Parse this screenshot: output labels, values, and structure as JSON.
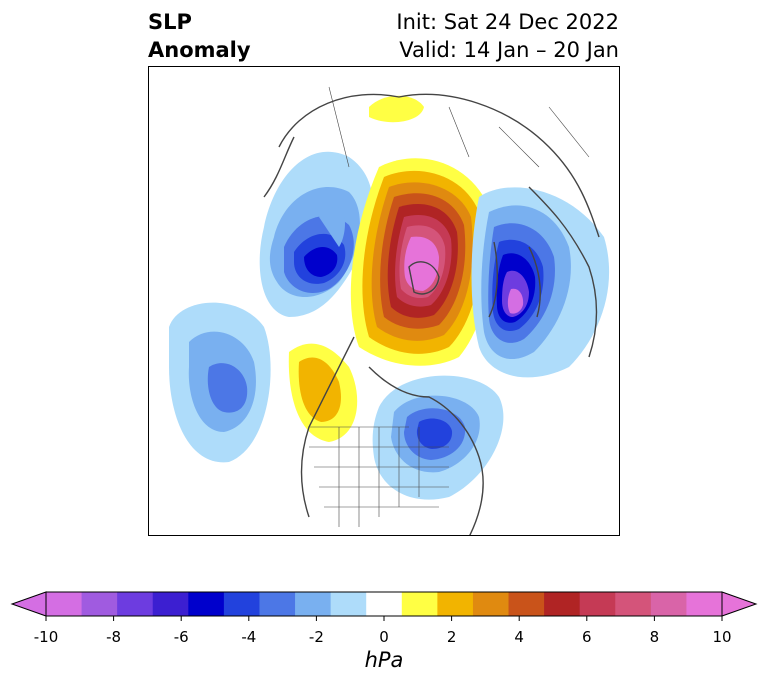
{
  "title": {
    "left_line1": "SLP",
    "left_line2": "Anomaly",
    "right_line1": "Init: Sat 24 Dec 2022",
    "right_line2": "Valid: 14 Jan – 20 Jan"
  },
  "colorbar": {
    "unit": "hPa",
    "tick_labels": [
      "-10",
      "-8",
      "-6",
      "-4",
      "-2",
      "0",
      "2",
      "4",
      "6",
      "8",
      "10"
    ],
    "bins": [
      {
        "color": "#d46ee3"
      },
      {
        "color": "#a05be0"
      },
      {
        "color": "#6d3ce0"
      },
      {
        "color": "#3c1fd1"
      },
      {
        "color": "#0000cc"
      },
      {
        "color": "#2242dd"
      },
      {
        "color": "#4c77e6"
      },
      {
        "color": "#79b0f0"
      },
      {
        "color": "#aedcfa"
      },
      {
        "color": "#ffffff"
      },
      {
        "color": "#ffff44"
      },
      {
        "color": "#f2b400"
      },
      {
        "color": "#e08a10"
      },
      {
        "color": "#c9531a"
      },
      {
        "color": "#b02424"
      },
      {
        "color": "#c53a55"
      },
      {
        "color": "#d4547a"
      },
      {
        "color": "#d964a8"
      },
      {
        "color": "#e673d9"
      }
    ],
    "extend_low_color": "#d46ee3",
    "extend_high_color": "#e673d9"
  },
  "map": {
    "region": "Northern Hemisphere",
    "colors": {
      "coast": "#444444"
    }
  }
}
